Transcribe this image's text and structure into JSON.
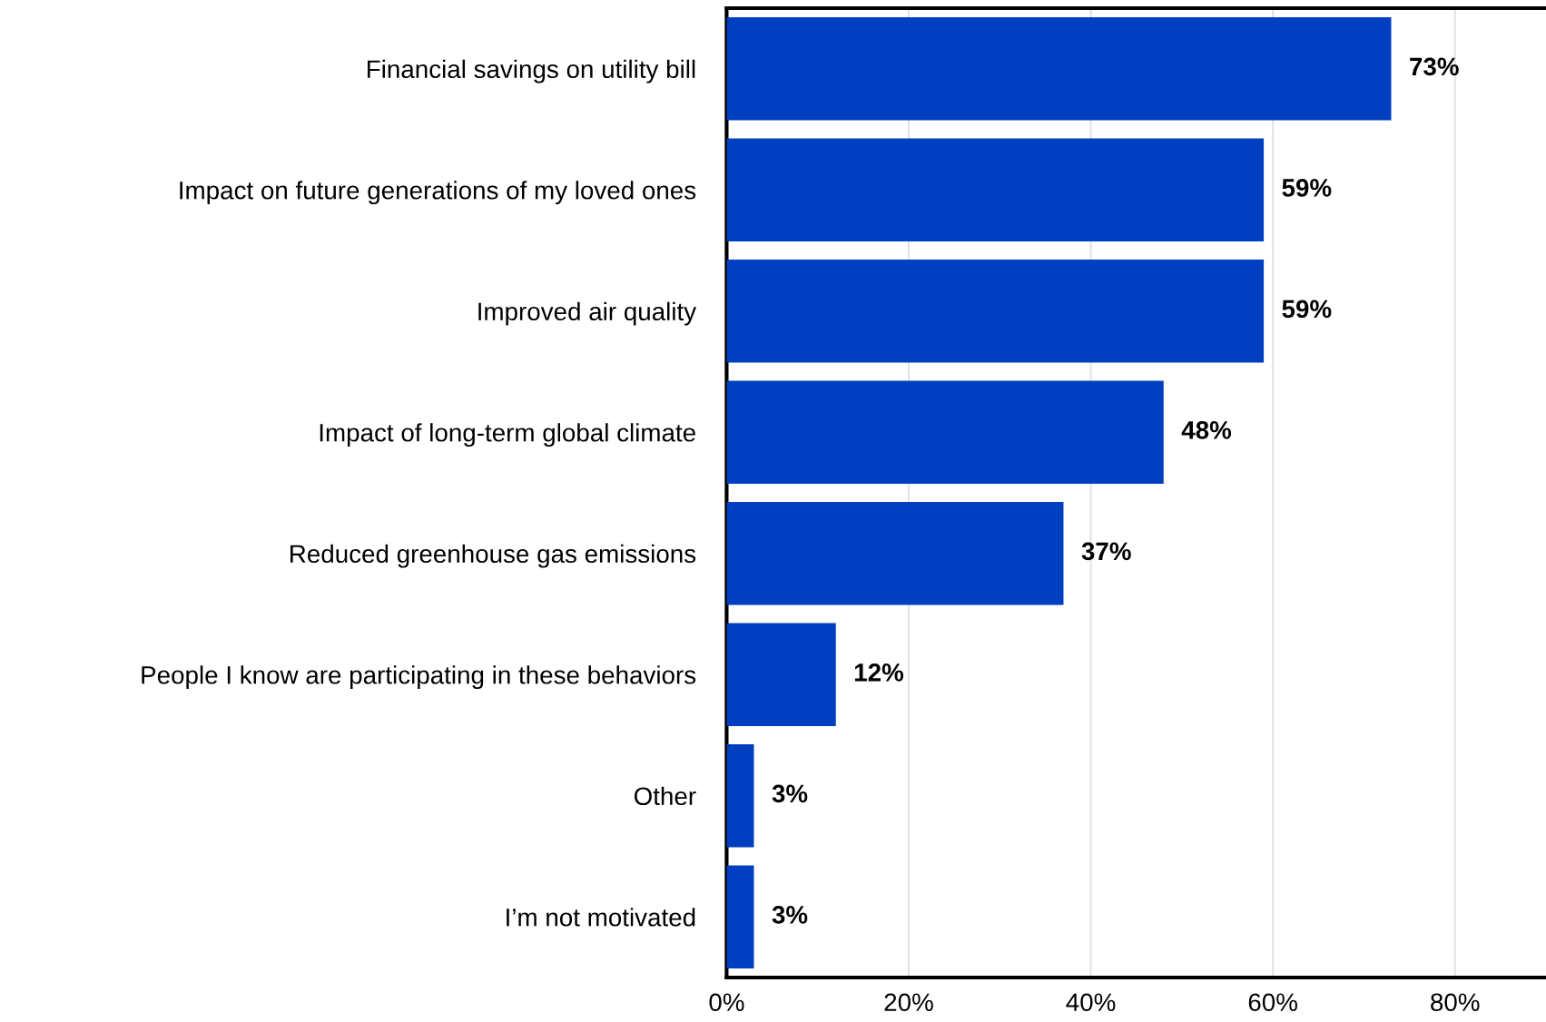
{
  "chart_data": {
    "type": "bar",
    "orientation": "horizontal",
    "categories": [
      "Financial savings on utility bill",
      "Impact on future generations of my loved ones",
      "Improved air quality",
      "Impact of long-term global climate",
      "Reduced greenhouse gas emissions",
      "People I know are participating in these behaviors",
      "Other",
      "I’m not motivated"
    ],
    "values": [
      73,
      59,
      59,
      48,
      37,
      12,
      3,
      3
    ],
    "value_labels": [
      "73%",
      "59%",
      "59%",
      "48%",
      "37%",
      "12%",
      "3%",
      "3%"
    ],
    "color": "#0040c0",
    "xlim": [
      0,
      90
    ],
    "xticks": [
      {
        "value": 0,
        "label": "0%"
      },
      {
        "value": 20,
        "label": "20%"
      },
      {
        "value": 40,
        "label": "40%"
      },
      {
        "value": 60,
        "label": "60%"
      },
      {
        "value": 80,
        "label": "80%"
      }
    ],
    "grid": "x",
    "legend": false
  }
}
